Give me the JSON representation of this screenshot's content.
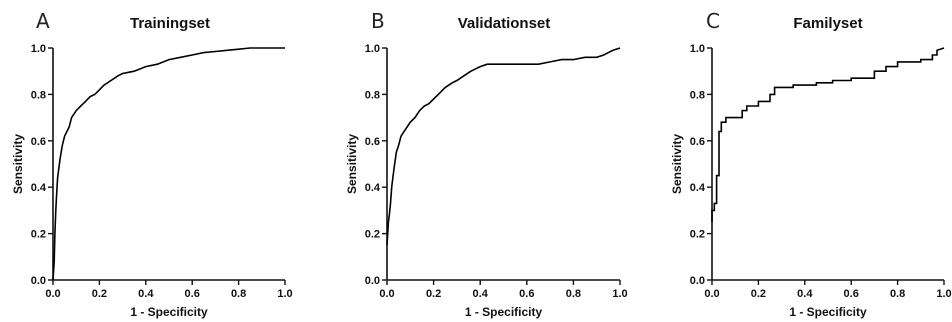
{
  "chart_data": [
    {
      "type": "line",
      "panel_label": "A",
      "title": "Trainingset",
      "xlabel": "1 - Specificity",
      "ylabel": "Sensitivity",
      "xlim": [
        0,
        1
      ],
      "ylim": [
        0,
        1
      ],
      "x_ticks": [
        "0.0",
        "0.2",
        "0.4",
        "0.6",
        "0.8",
        "1.0"
      ],
      "y_ticks": [
        "0.0",
        "0.2",
        "0.4",
        "0.6",
        "0.8",
        "1.0"
      ],
      "grid": false,
      "legend": "none",
      "series": [
        {
          "x": [
            0,
            0.005,
            0.008,
            0.012,
            0.015,
            0.02,
            0.025,
            0.03,
            0.04,
            0.05,
            0.06,
            0.07,
            0.08,
            0.1,
            0.12,
            0.14,
            0.16,
            0.18,
            0.2,
            0.22,
            0.25,
            0.28,
            0.3,
            0.35,
            0.4,
            0.45,
            0.5,
            0.55,
            0.6,
            0.65,
            0.7,
            0.75,
            0.8,
            0.85,
            0.9,
            0.95,
            1.0
          ],
          "y": [
            0,
            0.08,
            0.2,
            0.3,
            0.36,
            0.44,
            0.48,
            0.52,
            0.58,
            0.62,
            0.64,
            0.66,
            0.7,
            0.73,
            0.75,
            0.77,
            0.79,
            0.8,
            0.82,
            0.84,
            0.86,
            0.88,
            0.89,
            0.9,
            0.92,
            0.93,
            0.95,
            0.96,
            0.97,
            0.98,
            0.985,
            0.99,
            0.995,
            1.0,
            1.0,
            1.0,
            1.0
          ]
        }
      ]
    },
    {
      "type": "line",
      "panel_label": "B",
      "title": "Validationset",
      "xlabel": "1 - Specificity",
      "ylabel": "Sensitivity",
      "xlim": [
        0,
        1
      ],
      "ylim": [
        0,
        1
      ],
      "x_ticks": [
        "0.0",
        "0.2",
        "0.4",
        "0.6",
        "0.8",
        "1.0"
      ],
      "y_ticks": [
        "0.0",
        "0.2",
        "0.4",
        "0.6",
        "0.8",
        "1.0"
      ],
      "grid": false,
      "legend": "none",
      "series": [
        {
          "x": [
            0,
            0.003,
            0.006,
            0.01,
            0.015,
            0.02,
            0.03,
            0.04,
            0.05,
            0.06,
            0.08,
            0.1,
            0.12,
            0.14,
            0.16,
            0.18,
            0.2,
            0.22,
            0.25,
            0.28,
            0.3,
            0.33,
            0.36,
            0.4,
            0.43,
            0.45,
            0.5,
            0.55,
            0.6,
            0.65,
            0.7,
            0.75,
            0.8,
            0.85,
            0.9,
            0.93,
            0.95,
            0.97,
            1.0
          ],
          "y": [
            0.15,
            0.2,
            0.25,
            0.28,
            0.33,
            0.4,
            0.48,
            0.55,
            0.58,
            0.62,
            0.65,
            0.68,
            0.7,
            0.73,
            0.75,
            0.76,
            0.78,
            0.8,
            0.83,
            0.85,
            0.86,
            0.88,
            0.9,
            0.92,
            0.93,
            0.93,
            0.93,
            0.93,
            0.93,
            0.93,
            0.94,
            0.95,
            0.95,
            0.96,
            0.96,
            0.97,
            0.98,
            0.99,
            1.0
          ]
        }
      ]
    },
    {
      "type": "line",
      "panel_label": "C",
      "title": "Familyset",
      "xlabel": "1 - Specificity",
      "ylabel": "Sensitivity",
      "xlim": [
        0,
        1
      ],
      "ylim": [
        0,
        1
      ],
      "x_ticks": [
        "0.0",
        "0.2",
        "0.4",
        "0.6",
        "0.8",
        "1.0"
      ],
      "y_ticks": [
        "0.0",
        "0.2",
        "0.4",
        "0.6",
        "0.8",
        "1.0"
      ],
      "grid": false,
      "legend": "none",
      "series": [
        {
          "x": [
            0,
            0,
            0.01,
            0.01,
            0.02,
            0.02,
            0.03,
            0.03,
            0.04,
            0.04,
            0.06,
            0.06,
            0.1,
            0.1,
            0.13,
            0.13,
            0.15,
            0.15,
            0.2,
            0.2,
            0.25,
            0.25,
            0.27,
            0.27,
            0.35,
            0.35,
            0.45,
            0.45,
            0.52,
            0.52,
            0.6,
            0.6,
            0.7,
            0.7,
            0.75,
            0.75,
            0.8,
            0.8,
            0.9,
            0.9,
            0.95,
            0.95,
            0.97,
            0.97,
            1.0
          ],
          "y": [
            0.25,
            0.3,
            0.3,
            0.33,
            0.33,
            0.45,
            0.45,
            0.64,
            0.64,
            0.68,
            0.68,
            0.7,
            0.7,
            0.7,
            0.7,
            0.73,
            0.73,
            0.75,
            0.75,
            0.77,
            0.77,
            0.8,
            0.8,
            0.83,
            0.83,
            0.84,
            0.84,
            0.85,
            0.85,
            0.86,
            0.86,
            0.87,
            0.87,
            0.9,
            0.9,
            0.92,
            0.92,
            0.94,
            0.94,
            0.95,
            0.95,
            0.97,
            0.97,
            0.99,
            1.0
          ]
        }
      ]
    }
  ]
}
